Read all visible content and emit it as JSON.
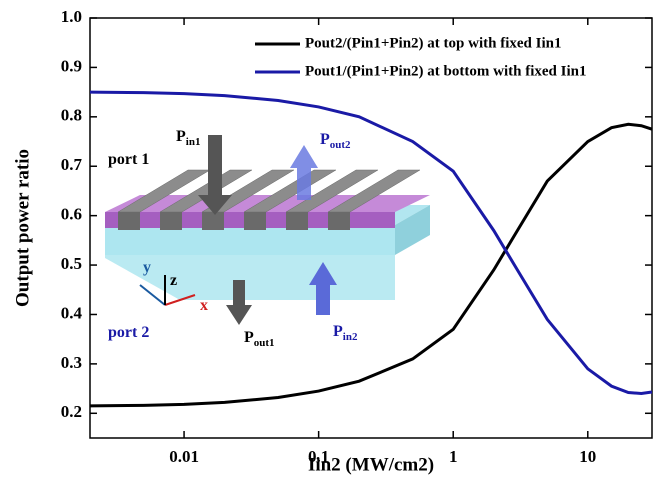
{
  "chart_data": {
    "type": "line",
    "x_label": "Iin2 (MW/cm2)",
    "y_label": "Output power ratio",
    "x": [
      0.002,
      0.005,
      0.01,
      0.02,
      0.05,
      0.1,
      0.2,
      0.5,
      1,
      2,
      3,
      5,
      10,
      15,
      20,
      25,
      30
    ],
    "series": [
      {
        "name": "Pout2/(Pin1+Pin2) at top with fixed Iin1",
        "color": "#000000",
        "values": [
          0.215,
          0.216,
          0.218,
          0.222,
          0.232,
          0.245,
          0.265,
          0.31,
          0.37,
          0.49,
          0.57,
          0.67,
          0.75,
          0.778,
          0.785,
          0.782,
          0.775
        ]
      },
      {
        "name": "Pout1/(Pin1+Pin2) at bottom with fixed Iin1",
        "color": "#1a1aa6",
        "values": [
          0.85,
          0.849,
          0.847,
          0.843,
          0.833,
          0.82,
          0.8,
          0.75,
          0.69,
          0.57,
          0.49,
          0.39,
          0.29,
          0.255,
          0.242,
          0.24,
          0.243
        ]
      }
    ],
    "xlim": [
      0.002,
      30
    ],
    "xticks": [
      0.01,
      0.1,
      1,
      10
    ],
    "x_log": true,
    "ylim": [
      0.15,
      1.0
    ],
    "yticks": [
      0.2,
      0.3,
      0.4,
      0.5,
      0.6,
      0.7,
      0.8,
      0.9,
      {
        "value": 1.0,
        "label": "1.0"
      }
    ],
    "legend": "upper right",
    "annotations": [
      {
        "text": "P",
        "sub": "in1"
      },
      {
        "text": "P",
        "sub": "out2"
      },
      {
        "text": "port 1"
      },
      {
        "text": "port 2"
      },
      {
        "text": "P",
        "sub": "out1"
      },
      {
        "text": "P",
        "sub": "in2"
      },
      {
        "text": "x"
      },
      {
        "text": "y"
      },
      {
        "text": "z"
      }
    ]
  }
}
